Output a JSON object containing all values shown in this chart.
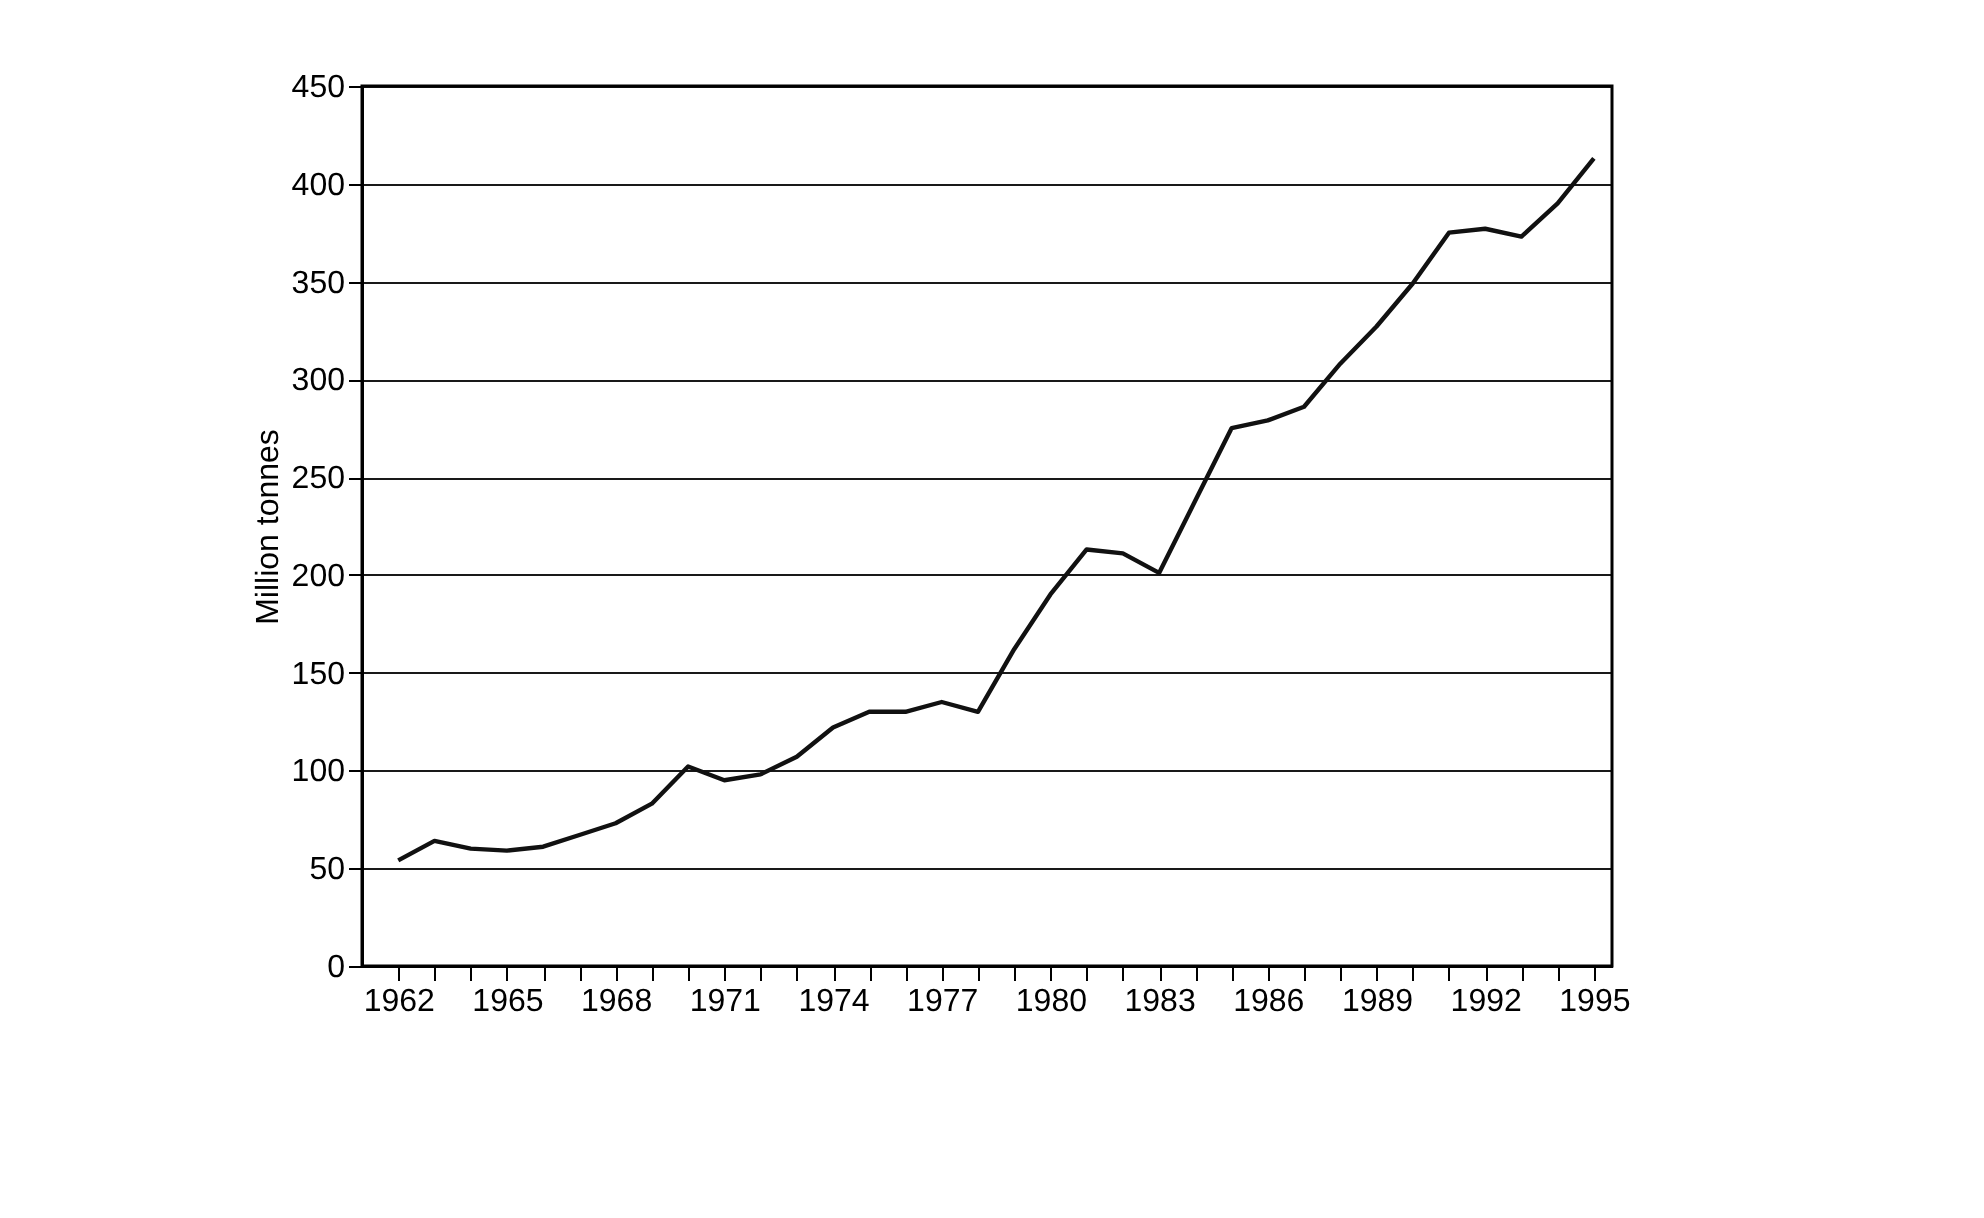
{
  "chart_data": {
    "type": "line",
    "ylabel": "Million tonnes",
    "x": [
      1962,
      1963,
      1964,
      1965,
      1966,
      1967,
      1968,
      1969,
      1970,
      1971,
      1972,
      1973,
      1974,
      1975,
      1976,
      1977,
      1978,
      1979,
      1980,
      1981,
      1982,
      1983,
      1984,
      1985,
      1986,
      1987,
      1988,
      1989,
      1990,
      1991,
      1992,
      1993,
      1994,
      1995
    ],
    "series": [
      {
        "color": "#111111",
        "values": [
          54,
          64,
          60,
          59,
          61,
          67,
          73,
          83,
          102,
          95,
          98,
          107,
          122,
          130,
          130,
          135,
          130,
          162,
          190,
          213,
          211,
          201,
          238,
          275,
          279,
          286,
          308,
          327,
          349,
          375,
          377,
          373,
          390,
          413
        ]
      }
    ],
    "xlim": [
      1961,
      1995.5
    ],
    "xticks": [
      1962,
      {
        "value": 1963,
        "label": null
      },
      {
        "value": 1964,
        "label": null
      },
      1965,
      {
        "value": 1966,
        "label": null
      },
      {
        "value": 1967,
        "label": null
      },
      1968,
      {
        "value": 1969,
        "label": null
      },
      {
        "value": 1970,
        "label": null
      },
      1971,
      {
        "value": 1972,
        "label": null
      },
      {
        "value": 1973,
        "label": null
      },
      1974,
      {
        "value": 1975,
        "label": null
      },
      {
        "value": 1976,
        "label": null
      },
      1977,
      {
        "value": 1978,
        "label": null
      },
      {
        "value": 1979,
        "label": null
      },
      1980,
      {
        "value": 1981,
        "label": null
      },
      {
        "value": 1982,
        "label": null
      },
      1983,
      {
        "value": 1984,
        "label": null
      },
      {
        "value": 1985,
        "label": null
      },
      1986,
      {
        "value": 1987,
        "label": null
      },
      {
        "value": 1988,
        "label": null
      },
      1989,
      {
        "value": 1990,
        "label": null
      },
      {
        "value": 1991,
        "label": null
      },
      1992,
      {
        "value": 1993,
        "label": null
      },
      {
        "value": 1994,
        "label": null
      },
      1995
    ],
    "ylim": [
      0,
      450
    ],
    "yticks": [
      0,
      50,
      100,
      150,
      200,
      250,
      300,
      350,
      400,
      450
    ],
    "grid": "y",
    "legend": false,
    "marker": "none",
    "line_style": "solid"
  }
}
